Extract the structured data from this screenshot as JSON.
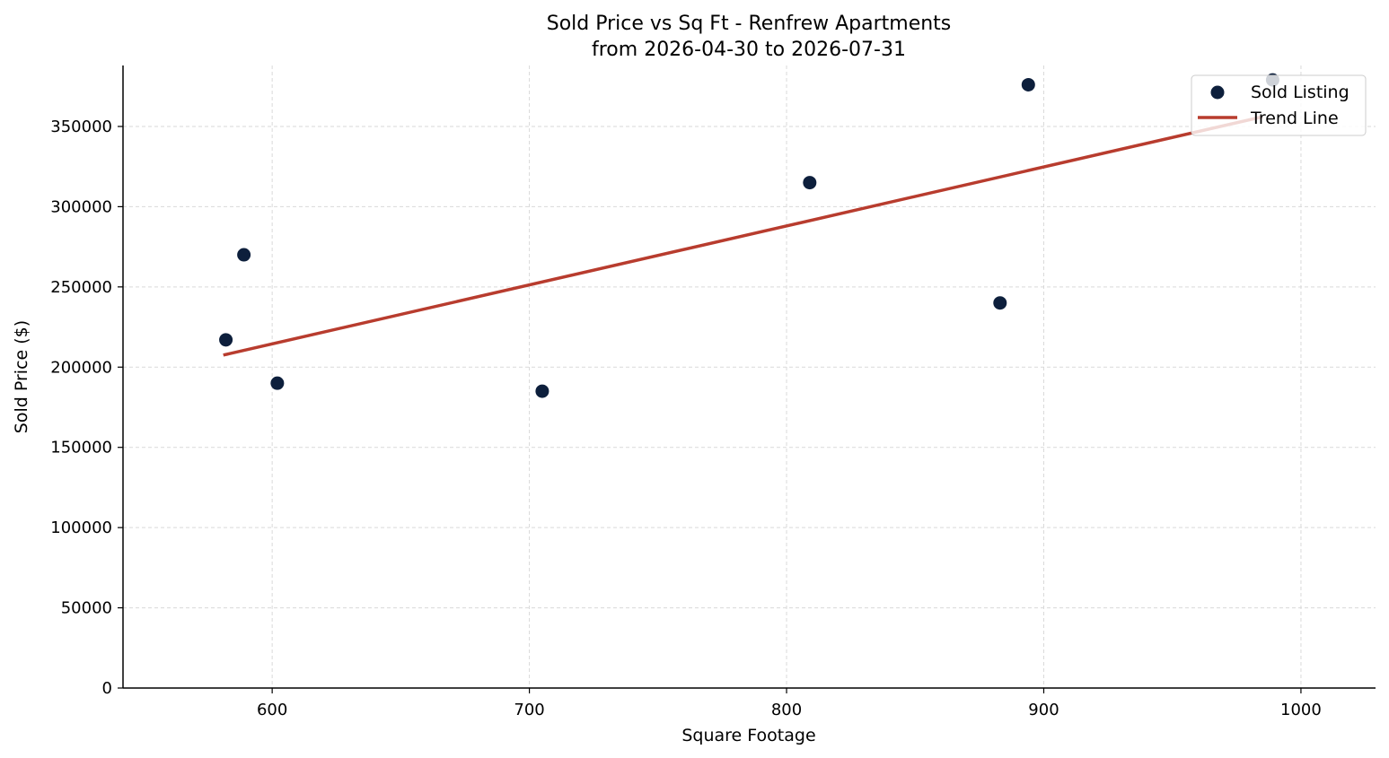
{
  "chart_data": {
    "type": "scatter",
    "title": "Sold Price vs Sq Ft - Renfrew Apartments",
    "subtitle": "from 2026-04-30 to 2026-07-31",
    "xlabel": "Square Footage",
    "ylabel": "Sold Price ($)",
    "xlim": [
      542,
      1029
    ],
    "ylim": [
      0,
      388000
    ],
    "xticks": [
      "600",
      "700",
      "800",
      "900",
      "1000"
    ],
    "xtick_values": [
      600,
      700,
      800,
      900,
      1000
    ],
    "yticks": [
      "0",
      "50000",
      "100000",
      "150000",
      "200000",
      "250000",
      "300000",
      "350000"
    ],
    "ytick_values": [
      0,
      50000,
      100000,
      150000,
      200000,
      250000,
      300000,
      350000
    ],
    "grid": true,
    "legend_position": "top-right",
    "series": [
      {
        "name": "Sold Listing",
        "kind": "scatter",
        "color": "#0d1f3c",
        "points": [
          {
            "x": 582,
            "y": 217000
          },
          {
            "x": 589,
            "y": 270000
          },
          {
            "x": 602,
            "y": 190000
          },
          {
            "x": 705,
            "y": 185000
          },
          {
            "x": 809,
            "y": 315000
          },
          {
            "x": 883,
            "y": 240000
          },
          {
            "x": 894,
            "y": 376000
          },
          {
            "x": 989,
            "y": 379000
          }
        ]
      },
      {
        "name": "Trend Line",
        "kind": "line",
        "color": "#b83c2e",
        "points": [
          {
            "x": 581,
            "y": 207500
          },
          {
            "x": 985,
            "y": 356000
          }
        ]
      }
    ]
  }
}
